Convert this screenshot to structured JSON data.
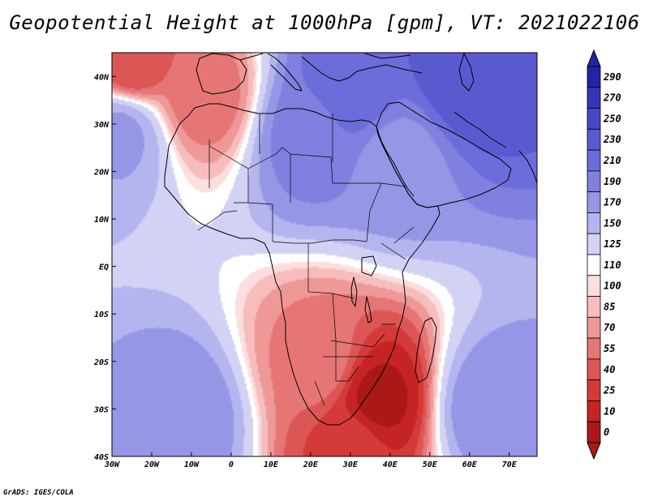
{
  "title": "Geopotential Height at 1000hPa [gpm], VT: 2021022106",
  "credit": "GrADS: IGES/COLA",
  "map": {
    "projection": "latlon",
    "lon_range": [
      -30,
      77
    ],
    "lat_range": [
      -40,
      45
    ],
    "lon_ticks": [
      {
        "value": -30,
        "label": "30W"
      },
      {
        "value": -20,
        "label": "20W"
      },
      {
        "value": -10,
        "label": "10W"
      },
      {
        "value": 0,
        "label": "0"
      },
      {
        "value": 10,
        "label": "10E"
      },
      {
        "value": 20,
        "label": "20E"
      },
      {
        "value": 30,
        "label": "30E"
      },
      {
        "value": 40,
        "label": "40E"
      },
      {
        "value": 50,
        "label": "50E"
      },
      {
        "value": 60,
        "label": "60E"
      },
      {
        "value": 70,
        "label": "70E"
      }
    ],
    "lat_ticks": [
      {
        "value": 40,
        "label": "40N"
      },
      {
        "value": 30,
        "label": "30N"
      },
      {
        "value": 20,
        "label": "20N"
      },
      {
        "value": 10,
        "label": "10N"
      },
      {
        "value": 0,
        "label": "EQ"
      },
      {
        "value": -10,
        "label": "10S"
      },
      {
        "value": -20,
        "label": "20S"
      },
      {
        "value": -30,
        "label": "30S"
      },
      {
        "value": -40,
        "label": "40S"
      }
    ]
  },
  "colorbar": {
    "labels": [
      "290",
      "270",
      "250",
      "230",
      "210",
      "190",
      "170",
      "150",
      "125",
      "110",
      "100",
      "85",
      "70",
      "55",
      "40",
      "25",
      "10",
      "0"
    ],
    "colors": [
      "#2323a5",
      "#3535b8",
      "#4848c6",
      "#5a5ad0",
      "#6c6cda",
      "#8080e0",
      "#9696e6",
      "#b4b4ee",
      "#d2d2f5",
      "#ffffff",
      "#fcdede",
      "#f7bdbd",
      "#ee9898",
      "#e67676",
      "#dd5656",
      "#d53a3a",
      "#c62424",
      "#aa1818"
    ]
  },
  "chart_data": {
    "type": "heatmap",
    "title": "Geopotential Height at 1000hPa [gpm], VT: 2021022106",
    "variable": "Geopotential Height",
    "level": "1000hPa",
    "units": "gpm",
    "valid_time": "2021022106",
    "x_range": [
      -30,
      77
    ],
    "y_range": [
      -40,
      45
    ],
    "contour_levels": [
      0,
      10,
      25,
      40,
      55,
      70,
      85,
      100,
      110,
      125,
      150,
      170,
      190,
      210,
      230,
      250,
      270,
      290
    ],
    "features": [
      {
        "name": "high",
        "lon": 60,
        "lat": 40,
        "value": 250
      },
      {
        "name": "high",
        "lon": 30,
        "lat": 38,
        "value": 230
      },
      {
        "name": "high",
        "lon": 20,
        "lat": 28,
        "value": 200
      },
      {
        "name": "high",
        "lon": 42,
        "lat": 22,
        "value": 180
      },
      {
        "name": "high",
        "lon": -28,
        "lat": 28,
        "value": 175
      },
      {
        "name": "high",
        "lon": -12,
        "lat": -32,
        "value": 185
      },
      {
        "name": "high",
        "lon": 65,
        "lat": -30,
        "value": 185
      },
      {
        "name": "low",
        "lon": 37,
        "lat": -28,
        "value": 5
      },
      {
        "name": "low",
        "lon": 30,
        "lat": -38,
        "value": 35
      },
      {
        "name": "low",
        "lon": -25,
        "lat": 43,
        "value": 40
      },
      {
        "name": "low",
        "lon": -7,
        "lat": 36,
        "value": 60
      },
      {
        "name": "low",
        "lon": 22,
        "lat": -20,
        "value": 65
      }
    ]
  }
}
